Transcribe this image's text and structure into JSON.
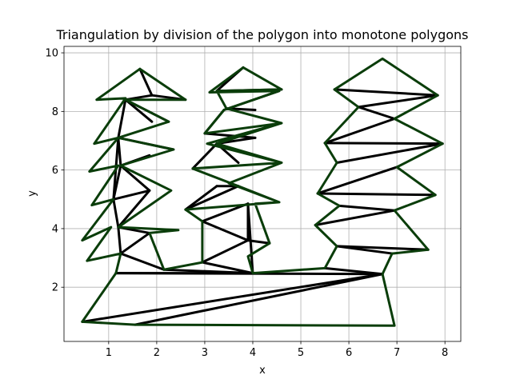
{
  "chart_data": {
    "type": "line",
    "title": "Triangulation by division of the polygon into monotone polygons",
    "xlabel": "x",
    "ylabel": "y",
    "xlim": [
      0.07,
      8.33
    ],
    "ylim": [
      0.15,
      10.22
    ],
    "xticks": [
      1,
      2,
      3,
      4,
      5,
      6,
      7,
      8
    ],
    "yticks": [
      2,
      4,
      6,
      8,
      10
    ],
    "grid": true,
    "outline_color": "#0a3d0a",
    "edge_color": "#000000",
    "polygon": [
      [
        0.45,
        0.82
      ],
      [
        1.55,
        0.72
      ],
      [
        6.95,
        0.69
      ],
      [
        6.7,
        2.45
      ],
      [
        6.9,
        3.15
      ],
      [
        7.65,
        3.28
      ],
      [
        6.95,
        4.62
      ],
      [
        7.8,
        5.15
      ],
      [
        7.0,
        6.1
      ],
      [
        7.95,
        6.9
      ],
      [
        6.95,
        7.75
      ],
      [
        7.85,
        8.55
      ],
      [
        6.7,
        9.8
      ],
      [
        5.7,
        8.75
      ],
      [
        6.2,
        8.15
      ],
      [
        5.5,
        6.92
      ],
      [
        5.75,
        6.25
      ],
      [
        5.35,
        5.2
      ],
      [
        5.8,
        4.78
      ],
      [
        5.3,
        4.12
      ],
      [
        5.75,
        3.4
      ],
      [
        5.5,
        2.65
      ],
      [
        4.0,
        2.48
      ],
      [
        3.9,
        3.05
      ],
      [
        4.35,
        3.5
      ],
      [
        4.05,
        4.85
      ],
      [
        4.55,
        4.9
      ],
      [
        3.5,
        5.55
      ],
      [
        4.6,
        6.25
      ],
      [
        3.05,
        6.9
      ],
      [
        4.6,
        7.6
      ],
      [
        3.0,
        7.25
      ],
      [
        3.4,
        8.05
      ],
      [
        4.55,
        8.7
      ],
      [
        3.1,
        8.65
      ],
      [
        3.8,
        9.5
      ],
      [
        4.6,
        8.75
      ],
      [
        3.25,
        8.7
      ],
      [
        3.45,
        8.1
      ],
      [
        4.6,
        7.6
      ],
      [
        3.25,
        6.9
      ],
      [
        4.6,
        6.25
      ],
      [
        2.75,
        6.05
      ],
      [
        3.7,
        5.45
      ],
      [
        4.55,
        4.9
      ],
      [
        2.6,
        4.65
      ],
      [
        2.95,
        4.25
      ],
      [
        2.95,
        2.85
      ],
      [
        2.15,
        2.6
      ],
      [
        1.85,
        3.85
      ],
      [
        2.45,
        3.95
      ],
      [
        1.2,
        4.05
      ],
      [
        2.3,
        5.3
      ],
      [
        1.25,
        6.15
      ],
      [
        2.35,
        6.7
      ],
      [
        1.2,
        7.1
      ],
      [
        2.25,
        7.65
      ],
      [
        1.35,
        8.4
      ],
      [
        2.6,
        8.4
      ],
      [
        1.65,
        9.45
      ],
      [
        0.75,
        8.4
      ],
      [
        1.35,
        8.45
      ],
      [
        0.7,
        6.9
      ],
      [
        1.2,
        7.1
      ],
      [
        0.6,
        5.95
      ],
      [
        1.2,
        6.15
      ],
      [
        0.65,
        4.8
      ],
      [
        1.1,
        5.0
      ],
      [
        0.45,
        3.6
      ],
      [
        1.05,
        4.05
      ],
      [
        0.55,
        2.9
      ],
      [
        1.25,
        3.15
      ],
      [
        1.15,
        2.48
      ]
    ],
    "diagonals": [
      [
        [
          0.45,
          0.82
        ],
        [
          6.7,
          2.45
        ]
      ],
      [
        [
          1.55,
          0.72
        ],
        [
          6.7,
          2.45
        ]
      ],
      [
        [
          1.15,
          2.48
        ],
        [
          6.7,
          2.45
        ]
      ],
      [
        [
          1.15,
          2.48
        ],
        [
          4.0,
          2.48
        ]
      ],
      [
        [
          2.15,
          2.6
        ],
        [
          4.0,
          2.48
        ]
      ],
      [
        [
          2.95,
          2.85
        ],
        [
          4.0,
          2.48
        ]
      ],
      [
        [
          5.5,
          2.65
        ],
        [
          6.7,
          2.45
        ]
      ],
      [
        [
          5.75,
          3.4
        ],
        [
          6.9,
          3.15
        ]
      ],
      [
        [
          5.75,
          3.4
        ],
        [
          7.65,
          3.28
        ]
      ],
      [
        [
          5.8,
          4.78
        ],
        [
          6.95,
          4.62
        ]
      ],
      [
        [
          5.3,
          4.12
        ],
        [
          6.95,
          4.62
        ]
      ],
      [
        [
          5.35,
          5.2
        ],
        [
          7.8,
          5.15
        ]
      ],
      [
        [
          5.35,
          5.2
        ],
        [
          7.0,
          6.1
        ]
      ],
      [
        [
          5.75,
          6.25
        ],
        [
          7.95,
          6.9
        ]
      ],
      [
        [
          5.5,
          6.92
        ],
        [
          7.95,
          6.9
        ]
      ],
      [
        [
          5.5,
          6.92
        ],
        [
          6.95,
          7.75
        ]
      ],
      [
        [
          6.2,
          8.15
        ],
        [
          7.85,
          8.55
        ]
      ],
      [
        [
          5.7,
          8.75
        ],
        [
          7.85,
          8.55
        ]
      ],
      [
        [
          6.2,
          8.15
        ],
        [
          6.95,
          7.75
        ]
      ],
      [
        [
          1.25,
          3.15
        ],
        [
          2.15,
          2.6
        ]
      ],
      [
        [
          1.25,
          3.15
        ],
        [
          1.85,
          3.85
        ]
      ],
      [
        [
          1.25,
          3.15
        ],
        [
          1.2,
          4.05
        ]
      ],
      [
        [
          1.2,
          4.05
        ],
        [
          1.85,
          3.85
        ]
      ],
      [
        [
          1.1,
          5.0
        ],
        [
          1.2,
          4.05
        ]
      ],
      [
        [
          1.1,
          5.0
        ],
        [
          1.85,
          5.3
        ]
      ],
      [
        [
          1.2,
          4.05
        ],
        [
          1.85,
          5.3
        ]
      ],
      [
        [
          1.85,
          5.3
        ],
        [
          1.25,
          6.15
        ]
      ],
      [
        [
          1.25,
          6.15
        ],
        [
          1.1,
          5.0
        ]
      ],
      [
        [
          1.25,
          6.15
        ],
        [
          1.85,
          6.5
        ]
      ],
      [
        [
          1.2,
          7.1
        ],
        [
          1.25,
          6.15
        ]
      ],
      [
        [
          1.2,
          7.1
        ],
        [
          2.35,
          6.7
        ]
      ],
      [
        [
          1.2,
          7.1
        ],
        [
          1.35,
          8.4
        ]
      ],
      [
        [
          1.35,
          8.4
        ],
        [
          1.9,
          7.65
        ]
      ],
      [
        [
          1.35,
          8.4
        ],
        [
          2.25,
          7.65
        ]
      ],
      [
        [
          1.35,
          8.4
        ],
        [
          1.9,
          8.55
        ]
      ],
      [
        [
          1.9,
          8.55
        ],
        [
          2.6,
          8.4
        ]
      ],
      [
        [
          1.65,
          9.45
        ],
        [
          1.9,
          8.55
        ]
      ],
      [
        [
          1.2,
          7.1
        ],
        [
          1.1,
          5.0
        ]
      ],
      [
        [
          2.95,
          4.25
        ],
        [
          3.9,
          4.85
        ]
      ],
      [
        [
          2.95,
          4.25
        ],
        [
          3.9,
          3.6
        ]
      ],
      [
        [
          2.95,
          2.85
        ],
        [
          3.9,
          3.6
        ]
      ],
      [
        [
          3.9,
          3.6
        ],
        [
          3.9,
          4.85
        ]
      ],
      [
        [
          3.9,
          3.6
        ],
        [
          4.35,
          3.5
        ]
      ],
      [
        [
          3.9,
          4.85
        ],
        [
          4.0,
          2.48
        ]
      ],
      [
        [
          2.6,
          4.65
        ],
        [
          3.7,
          5.45
        ]
      ],
      [
        [
          2.6,
          4.65
        ],
        [
          3.25,
          5.45
        ]
      ],
      [
        [
          3.25,
          5.45
        ],
        [
          3.7,
          5.45
        ]
      ],
      [
        [
          3.25,
          6.9
        ],
        [
          3.7,
          6.25
        ]
      ],
      [
        [
          2.75,
          6.05
        ],
        [
          3.25,
          6.9
        ]
      ],
      [
        [
          3.25,
          6.9
        ],
        [
          4.05,
          7.1
        ]
      ],
      [
        [
          3.0,
          7.25
        ],
        [
          4.05,
          7.1
        ]
      ],
      [
        [
          3.0,
          7.25
        ],
        [
          3.4,
          8.05
        ]
      ],
      [
        [
          3.45,
          8.1
        ],
        [
          4.05,
          8.05
        ]
      ],
      [
        [
          3.4,
          8.05
        ],
        [
          4.55,
          8.7
        ]
      ],
      [
        [
          3.8,
          9.5
        ],
        [
          3.25,
          8.7
        ]
      ],
      [
        [
          3.25,
          8.7
        ],
        [
          4.6,
          8.75
        ]
      ]
    ]
  }
}
